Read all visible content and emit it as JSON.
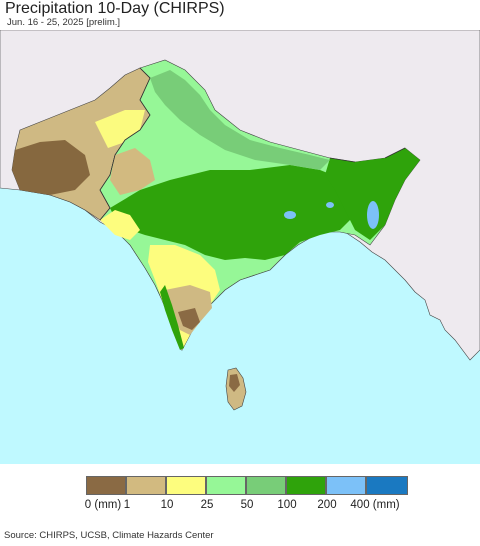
{
  "header": {
    "title": "Precipitation 10-Day (CHIRPS)",
    "subtitle": "Jun. 16 - 25, 2025 [prelim.]"
  },
  "legend": {
    "colors": [
      "#8a6a44",
      "#d2ba80",
      "#fdfd7e",
      "#96f797",
      "#78cd78",
      "#2fa30b",
      "#7cc1f8",
      "#1a79c1"
    ],
    "labels": [
      "0 (mm)",
      "1",
      "10",
      "25",
      "50",
      "100",
      "200",
      "400 (mm)"
    ]
  },
  "footer": {
    "source": "Source: CHIRPS, UCSB, Climate Hazards Center"
  }
}
